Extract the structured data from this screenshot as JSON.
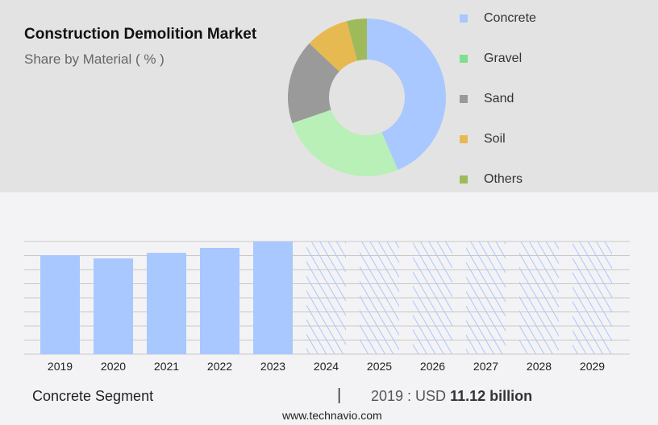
{
  "chart_data": [
    {
      "type": "pie",
      "title": "Construction Demolition Market",
      "subtitle": "Share by Material ( % )",
      "categories": [
        "Concrete",
        "Gravel",
        "Sand",
        "Soil",
        "Others"
      ],
      "values": [
        43.6,
        26.1,
        17.3,
        8.9,
        4.1
      ],
      "colors": [
        "#a8c8ff",
        "#b8f0b8",
        "#9a9a9a",
        "#e6ba50",
        "#9fba5a"
      ],
      "legend_colors": [
        "#a8c8ff",
        "#7ee08f",
        "#9a9a9a",
        "#e6ba50",
        "#9fba5a"
      ],
      "legend": "right"
    },
    {
      "type": "bar",
      "categories": [
        "2019",
        "2020",
        "2021",
        "2022",
        "2023",
        "2024",
        "2025",
        "2026",
        "2027",
        "2028",
        "2029"
      ],
      "values": [
        11.12,
        10.76,
        11.39,
        11.94,
        12.66,
        null,
        null,
        null,
        null,
        null,
        null
      ],
      "forecast": [
        false,
        false,
        false,
        false,
        false,
        true,
        true,
        true,
        true,
        true,
        true
      ],
      "ylabel": "",
      "grid": true,
      "color": "#a8c8ff"
    }
  ],
  "footer": {
    "segment": "Concrete Segment",
    "separator": "|",
    "year_label": "2019 : USD",
    "value": "11.12 billion",
    "url": "www.technavio.com"
  }
}
